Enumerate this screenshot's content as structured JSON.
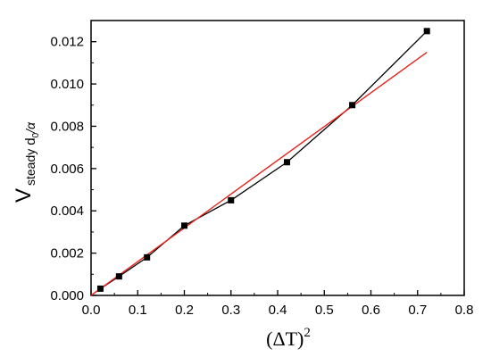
{
  "chart_data": {
    "type": "scatter",
    "title": "",
    "xlabel": {
      "open": "(",
      "delta": "Δ",
      "var": "T",
      "close": ")",
      "exponent": "2"
    },
    "ylabel": {
      "main": "V",
      "sub1": "steady",
      "sub2": "d",
      "sub2_subscript": "0",
      "sub3": "/α"
    },
    "xlim": [
      0.0,
      0.8
    ],
    "ylim": [
      0.0,
      0.013
    ],
    "xticks": [
      "0.0",
      "0.1",
      "0.2",
      "0.3",
      "0.4",
      "0.5",
      "0.6",
      "0.7",
      "0.8"
    ],
    "yticks": [
      "0.000",
      "0.002",
      "0.004",
      "0.006",
      "0.008",
      "0.010",
      "0.012"
    ],
    "grid": false,
    "series": [
      {
        "type": "line-with-markers",
        "color": "#000000",
        "marker": "square",
        "x": [
          0.02,
          0.06,
          0.12,
          0.2,
          0.3,
          0.42,
          0.56,
          0.72
        ],
        "y": [
          0.00032,
          0.0009,
          0.0018,
          0.0033,
          0.0045,
          0.0063,
          0.009,
          0.0125
        ]
      },
      {
        "type": "fit-line",
        "color": "#e8231b",
        "x": [
          0.0,
          0.72
        ],
        "y": [
          0.0,
          0.0115
        ]
      }
    ]
  }
}
